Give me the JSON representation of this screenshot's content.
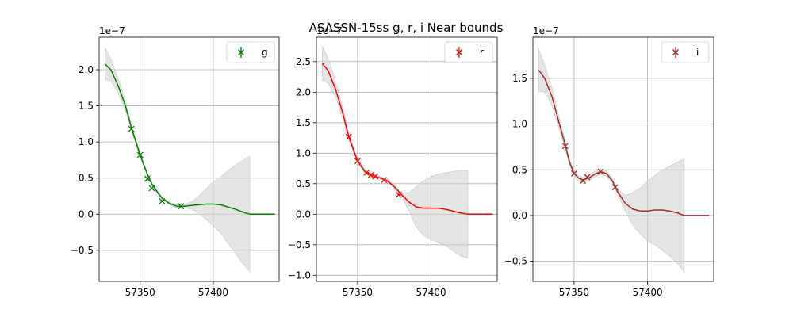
{
  "title": "ASASSN-15ss  g, r, i Near bounds",
  "chart_data": [
    {
      "type": "line",
      "band": "g",
      "color": "#008000",
      "offset_text": "1e−7",
      "xlim": [
        57322,
        57445
      ],
      "ylim": [
        -0.93,
        2.45
      ],
      "xticks": [
        57350,
        57400
      ],
      "xtick_labels": [
        "57350",
        "57400"
      ],
      "yticks": [
        -0.5,
        0.0,
        0.5,
        1.0,
        1.5,
        2.0
      ],
      "ytick_labels": [
        "−0.5",
        "0.0",
        "0.5",
        "1.0",
        "1.5",
        "2.0"
      ],
      "grid": true,
      "legend": {
        "position": "top-right",
        "label": "g"
      },
      "series": [
        {
          "name": "g",
          "kind": "model",
          "x": [
            57326,
            57330,
            57335,
            57340,
            57344,
            57350,
            57355,
            57358,
            57362,
            57365,
            57370,
            57375,
            57378,
            57380,
            57385,
            57390,
            57395,
            57400,
            57405,
            57410,
            57415,
            57420,
            57425,
            57430,
            57435,
            57440,
            57442
          ],
          "y": [
            2.08,
            2.0,
            1.78,
            1.5,
            1.2,
            0.82,
            0.55,
            0.42,
            0.3,
            0.22,
            0.15,
            0.11,
            0.11,
            0.11,
            0.12,
            0.13,
            0.14,
            0.14,
            0.13,
            0.1,
            0.07,
            0.03,
            0.0,
            0.0,
            0.0,
            0.0,
            0.0
          ],
          "upper": [
            2.3,
            2.15,
            1.88,
            1.57,
            1.24,
            0.85,
            0.57,
            0.44,
            0.32,
            0.24,
            0.17,
            0.13,
            0.12,
            0.13,
            0.17,
            0.25,
            0.35,
            0.45,
            0.52,
            0.6,
            0.68,
            0.74,
            0.8,
            null,
            null,
            null,
            null
          ],
          "lower": [
            1.86,
            1.85,
            1.68,
            1.43,
            1.16,
            0.79,
            0.53,
            0.4,
            0.28,
            0.2,
            0.13,
            0.09,
            0.1,
            0.09,
            0.07,
            0.01,
            -0.07,
            -0.17,
            -0.26,
            -0.4,
            -0.54,
            -0.68,
            -0.8,
            null,
            null,
            null,
            null
          ]
        },
        {
          "name": "g",
          "kind": "observations",
          "x": [
            57344,
            57350,
            57355,
            57358,
            57365,
            57378
          ],
          "y": [
            1.18,
            0.82,
            0.49,
            0.36,
            0.18,
            0.11
          ]
        }
      ]
    },
    {
      "type": "line",
      "band": "r",
      "color": "#ff0000",
      "offset_text": "1e−7",
      "xlim": [
        57322,
        57445
      ],
      "ylim": [
        -1.1,
        2.9
      ],
      "xticks": [
        57350,
        57400
      ],
      "xtick_labels": [
        "57350",
        "57400"
      ],
      "yticks": [
        -1.0,
        -0.5,
        0.0,
        0.5,
        1.0,
        1.5,
        2.0,
        2.5
      ],
      "ytick_labels": [
        "−1.0",
        "−0.5",
        "0.0",
        "0.5",
        "1.0",
        "1.5",
        "2.0",
        "2.5"
      ],
      "grid": true,
      "legend": {
        "position": "top-right",
        "label": "r"
      },
      "series": [
        {
          "name": "r",
          "kind": "model",
          "x": [
            57326,
            57330,
            57335,
            57340,
            57344,
            57350,
            57355,
            57358,
            57362,
            57366,
            57370,
            57375,
            57380,
            57385,
            57390,
            57395,
            57400,
            57405,
            57410,
            57415,
            57420,
            57425,
            57430,
            57435,
            57440,
            57442
          ],
          "y": [
            2.47,
            2.35,
            2.05,
            1.65,
            1.27,
            0.87,
            0.7,
            0.66,
            0.62,
            0.59,
            0.55,
            0.45,
            0.32,
            0.2,
            0.12,
            0.1,
            0.1,
            0.1,
            0.08,
            0.05,
            0.02,
            0.0,
            0.0,
            0.0,
            0.0,
            0.0
          ],
          "upper": [
            2.75,
            2.55,
            2.18,
            1.74,
            1.32,
            0.9,
            0.73,
            0.68,
            0.64,
            0.61,
            0.58,
            0.48,
            0.35,
            0.35,
            0.45,
            0.55,
            0.62,
            0.66,
            0.68,
            0.7,
            0.72,
            0.72,
            null,
            null,
            null,
            null
          ],
          "lower": [
            2.19,
            2.15,
            1.92,
            1.56,
            1.22,
            0.84,
            0.67,
            0.64,
            0.6,
            0.57,
            0.52,
            0.42,
            0.29,
            0.05,
            -0.21,
            -0.35,
            -0.42,
            -0.46,
            -0.52,
            -0.6,
            -0.68,
            -0.72,
            null,
            null,
            null,
            null
          ]
        },
        {
          "name": "r",
          "kind": "observations",
          "x": [
            57344,
            57350,
            57356,
            57359,
            57362,
            57368,
            57378
          ],
          "y": [
            1.27,
            0.87,
            0.68,
            0.64,
            0.62,
            0.56,
            0.32
          ]
        }
      ]
    },
    {
      "type": "line",
      "band": "i",
      "color": "#a52a2a",
      "offset_text": "1e−7",
      "xlim": [
        57322,
        57445
      ],
      "ylim": [
        -0.72,
        1.95
      ],
      "xticks": [
        57350,
        57400
      ],
      "xtick_labels": [
        "57350",
        "57400"
      ],
      "yticks": [
        -0.5,
        0.0,
        0.5,
        1.0,
        1.5
      ],
      "ytick_labels": [
        "−0.5",
        "0.0",
        "0.5",
        "1.0",
        "1.5"
      ],
      "grid": true,
      "legend": {
        "position": "top-right",
        "label": "i"
      },
      "series": [
        {
          "name": "i",
          "kind": "model",
          "x": [
            57326,
            57330,
            57335,
            57340,
            57344,
            57347,
            57350,
            57353,
            57356,
            57360,
            57365,
            57368,
            57372,
            57376,
            57380,
            57385,
            57390,
            57395,
            57400,
            57405,
            57410,
            57415,
            57420,
            57425,
            57430,
            57435,
            57440,
            57442
          ],
          "y": [
            1.59,
            1.5,
            1.3,
            1.0,
            0.77,
            0.58,
            0.46,
            0.41,
            0.39,
            0.41,
            0.46,
            0.48,
            0.46,
            0.38,
            0.25,
            0.13,
            0.07,
            0.05,
            0.05,
            0.06,
            0.06,
            0.05,
            0.03,
            0.0,
            0.0,
            0.0,
            0.0,
            0.0
          ],
          "upper": [
            1.82,
            1.65,
            1.4,
            1.06,
            0.81,
            0.61,
            0.49,
            0.44,
            0.42,
            0.44,
            0.49,
            0.51,
            0.49,
            0.41,
            0.28,
            0.22,
            0.25,
            0.3,
            0.38,
            0.44,
            0.5,
            0.54,
            0.58,
            0.62,
            null,
            null,
            null,
            null
          ],
          "lower": [
            1.36,
            1.35,
            1.2,
            0.94,
            0.73,
            0.55,
            0.43,
            0.38,
            0.36,
            0.38,
            0.43,
            0.45,
            0.43,
            0.35,
            0.22,
            0.04,
            -0.11,
            -0.2,
            -0.28,
            -0.32,
            -0.38,
            -0.44,
            -0.52,
            -0.62,
            null,
            null,
            null,
            null
          ]
        },
        {
          "name": "i",
          "kind": "observations",
          "x": [
            57344,
            57350,
            57356,
            57359,
            57368,
            57378
          ],
          "y": [
            0.76,
            0.46,
            0.38,
            0.42,
            0.48,
            0.31
          ]
        }
      ]
    }
  ]
}
